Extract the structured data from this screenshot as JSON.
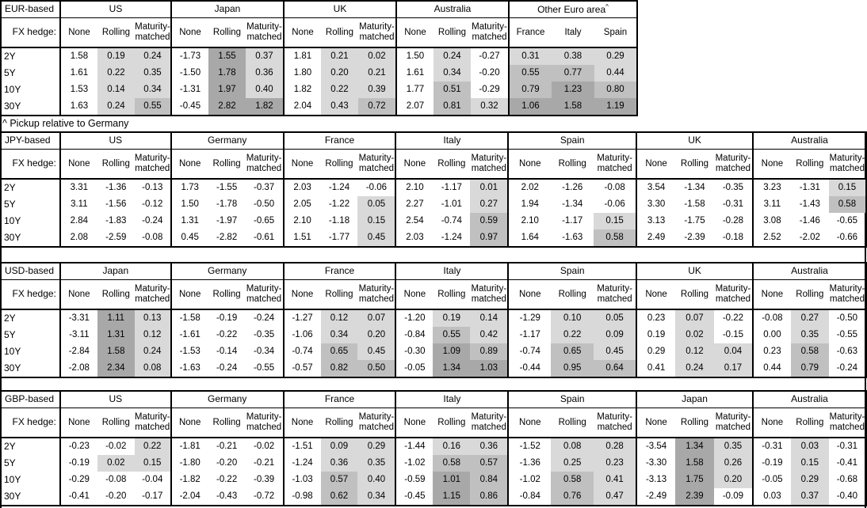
{
  "footnote": "^ Pickup relative to Germany",
  "hedge_label": "FX hedge:",
  "tenors": [
    "2Y",
    "5Y",
    "10Y",
    "30Y"
  ],
  "hedge_columns": [
    "None",
    "Rolling",
    "Maturity-matched"
  ],
  "colors": {
    "shade_light": "#d9d9d9",
    "shade_medium": "#c0c0c0",
    "shade_dark": "#a8a8a8",
    "border": "#000000",
    "background": "#ffffff"
  },
  "shading_legend": "cells shaded by value: <0 none, 0-0.5 light, 0.5-1 medium, >=1 dark; None column never shaded",
  "tables": [
    {
      "base": "EUR-based",
      "groups": [
        {
          "name": "US",
          "cols": [
            "None",
            "Rolling",
            "Maturity-matched"
          ],
          "shade_all": false,
          "rows": [
            [
              "1.58",
              "0.19",
              "0.24"
            ],
            [
              "1.61",
              "0.22",
              "0.35"
            ],
            [
              "1.53",
              "0.14",
              "0.34"
            ],
            [
              "1.63",
              "0.24",
              "0.55"
            ]
          ]
        },
        {
          "name": "Japan",
          "cols": [
            "None",
            "Rolling",
            "Maturity-matched"
          ],
          "shade_all": false,
          "rows": [
            [
              "-1.73",
              "1.55",
              "0.37"
            ],
            [
              "-1.50",
              "1.78",
              "0.36"
            ],
            [
              "-1.31",
              "1.97",
              "0.40"
            ],
            [
              "-0.45",
              "2.82",
              "1.82"
            ]
          ]
        },
        {
          "name": "UK",
          "cols": [
            "None",
            "Rolling",
            "Maturity-matched"
          ],
          "shade_all": false,
          "rows": [
            [
              "1.81",
              "0.21",
              "0.02"
            ],
            [
              "1.80",
              "0.20",
              "0.21"
            ],
            [
              "1.82",
              "0.22",
              "0.39"
            ],
            [
              "2.04",
              "0.43",
              "0.72"
            ]
          ]
        },
        {
          "name": "Australia",
          "cols": [
            "None",
            "Rolling",
            "Maturity-matched"
          ],
          "shade_all": false,
          "rows": [
            [
              "1.50",
              "0.24",
              "-0.27"
            ],
            [
              "1.61",
              "0.34",
              "-0.20"
            ],
            [
              "1.77",
              "0.51",
              "-0.29"
            ],
            [
              "2.07",
              "0.81",
              "0.32"
            ]
          ]
        },
        {
          "name": "Other Euro area",
          "footnote_marker": "^",
          "cols": [
            "France",
            "Italy",
            "Spain"
          ],
          "shade_all": true,
          "rows": [
            [
              "0.31",
              "0.38",
              "0.29"
            ],
            [
              "0.55",
              "0.77",
              "0.44"
            ],
            [
              "0.79",
              "1.23",
              "0.80"
            ],
            [
              "1.06",
              "1.58",
              "1.19"
            ]
          ]
        }
      ]
    },
    {
      "base": "JPY-based",
      "groups": [
        {
          "name": "US",
          "cols": [
            "None",
            "Rolling",
            "Maturity-matched"
          ],
          "shade_all": false,
          "rows": [
            [
              "3.31",
              "-1.36",
              "-0.13"
            ],
            [
              "3.11",
              "-1.56",
              "-0.12"
            ],
            [
              "2.84",
              "-1.83",
              "-0.24"
            ],
            [
              "2.08",
              "-2.59",
              "-0.08"
            ]
          ]
        },
        {
          "name": "Germany",
          "cols": [
            "None",
            "Rolling",
            "Maturity-matched"
          ],
          "shade_all": false,
          "rows": [
            [
              "1.73",
              "-1.55",
              "-0.37"
            ],
            [
              "1.50",
              "-1.78",
              "-0.50"
            ],
            [
              "1.31",
              "-1.97",
              "-0.65"
            ],
            [
              "0.45",
              "-2.82",
              "-0.61"
            ]
          ]
        },
        {
          "name": "France",
          "cols": [
            "None",
            "Rolling",
            "Maturity-matched"
          ],
          "shade_all": false,
          "rows": [
            [
              "2.03",
              "-1.24",
              "-0.06"
            ],
            [
              "2.05",
              "-1.22",
              "0.05"
            ],
            [
              "2.10",
              "-1.18",
              "0.15"
            ],
            [
              "1.51",
              "-1.77",
              "0.45"
            ]
          ]
        },
        {
          "name": "Italy",
          "cols": [
            "None",
            "Rolling",
            "Maturity-matched"
          ],
          "shade_all": false,
          "rows": [
            [
              "2.10",
              "-1.17",
              "0.01"
            ],
            [
              "2.27",
              "-1.01",
              "0.27"
            ],
            [
              "2.54",
              "-0.74",
              "0.59"
            ],
            [
              "2.03",
              "-1.24",
              "0.97"
            ]
          ]
        },
        {
          "name": "Spain",
          "cols": [
            "None",
            "Rolling",
            "Maturity-matched"
          ],
          "shade_all": false,
          "rows": [
            [
              "2.02",
              "-1.26",
              "-0.08"
            ],
            [
              "1.94",
              "-1.34",
              "-0.06"
            ],
            [
              "2.10",
              "-1.17",
              "0.15"
            ],
            [
              "1.64",
              "-1.63",
              "0.58"
            ]
          ]
        },
        {
          "name": "UK",
          "cols": [
            "None",
            "Rolling",
            "Maturity-matched"
          ],
          "shade_all": false,
          "rows": [
            [
              "3.54",
              "-1.34",
              "-0.35"
            ],
            [
              "3.30",
              "-1.58",
              "-0.31"
            ],
            [
              "3.13",
              "-1.75",
              "-0.28"
            ],
            [
              "2.49",
              "-2.39",
              "-0.18"
            ]
          ]
        },
        {
          "name": "Australia",
          "cols": [
            "None",
            "Rolling",
            "Maturity-matched"
          ],
          "shade_all": false,
          "rows": [
            [
              "3.23",
              "-1.31",
              "0.15"
            ],
            [
              "3.11",
              "-1.43",
              "0.58"
            ],
            [
              "3.08",
              "-1.46",
              "-0.65"
            ],
            [
              "2.52",
              "-2.02",
              "-0.66"
            ]
          ]
        }
      ]
    },
    {
      "base": "USD-based",
      "groups": [
        {
          "name": "Japan",
          "cols": [
            "None",
            "Rolling",
            "Maturity-matched"
          ],
          "shade_all": false,
          "rows": [
            [
              "-3.31",
              "1.11",
              "0.13"
            ],
            [
              "-3.11",
              "1.31",
              "0.12"
            ],
            [
              "-2.84",
              "1.58",
              "0.24"
            ],
            [
              "-2.08",
              "2.34",
              "0.08"
            ]
          ]
        },
        {
          "name": "Germany",
          "cols": [
            "None",
            "Rolling",
            "Maturity-matched"
          ],
          "shade_all": false,
          "rows": [
            [
              "-1.58",
              "-0.19",
              "-0.24"
            ],
            [
              "-1.61",
              "-0.22",
              "-0.35"
            ],
            [
              "-1.53",
              "-0.14",
              "-0.34"
            ],
            [
              "-1.63",
              "-0.24",
              "-0.55"
            ]
          ]
        },
        {
          "name": "France",
          "cols": [
            "None",
            "Rolling",
            "Maturity-matched"
          ],
          "shade_all": false,
          "rows": [
            [
              "-1.27",
              "0.12",
              "0.07"
            ],
            [
              "-1.06",
              "0.34",
              "0.20"
            ],
            [
              "-0.74",
              "0.65",
              "0.45"
            ],
            [
              "-0.57",
              "0.82",
              "0.50"
            ]
          ]
        },
        {
          "name": "Italy",
          "cols": [
            "None",
            "Rolling",
            "Maturity-matched"
          ],
          "shade_all": false,
          "rows": [
            [
              "-1.20",
              "0.19",
              "0.14"
            ],
            [
              "-0.84",
              "0.55",
              "0.42"
            ],
            [
              "-0.30",
              "1.09",
              "0.89"
            ],
            [
              "-0.05",
              "1.34",
              "1.03"
            ]
          ]
        },
        {
          "name": "Spain",
          "cols": [
            "None",
            "Rolling",
            "Maturity-matched"
          ],
          "shade_all": false,
          "rows": [
            [
              "-1.29",
              "0.10",
              "0.05"
            ],
            [
              "-1.17",
              "0.22",
              "0.09"
            ],
            [
              "-0.74",
              "0.65",
              "0.45"
            ],
            [
              "-0.44",
              "0.95",
              "0.64"
            ]
          ]
        },
        {
          "name": "UK",
          "cols": [
            "None",
            "Rolling",
            "Maturity-matched"
          ],
          "shade_all": false,
          "rows": [
            [
              "0.23",
              "0.07",
              "-0.22"
            ],
            [
              "0.19",
              "0.02",
              "-0.15"
            ],
            [
              "0.29",
              "0.12",
              "0.04"
            ],
            [
              "0.41",
              "0.24",
              "0.17"
            ]
          ]
        },
        {
          "name": "Australia",
          "cols": [
            "None",
            "Rolling",
            "Maturity-matched"
          ],
          "shade_all": false,
          "rows": [
            [
              "-0.08",
              "0.27",
              "-0.50"
            ],
            [
              "0.00",
              "0.35",
              "-0.55"
            ],
            [
              "0.23",
              "0.58",
              "-0.63"
            ],
            [
              "0.44",
              "0.79",
              "-0.24"
            ]
          ]
        }
      ]
    },
    {
      "base": "GBP-based",
      "groups": [
        {
          "name": "US",
          "cols": [
            "None",
            "Rolling",
            "Maturity-matched"
          ],
          "shade_all": false,
          "rows": [
            [
              "-0.23",
              "-0.02",
              "0.22"
            ],
            [
              "-0.19",
              "0.02",
              "0.15"
            ],
            [
              "-0.29",
              "-0.08",
              "-0.04"
            ],
            [
              "-0.41",
              "-0.20",
              "-0.17"
            ]
          ]
        },
        {
          "name": "Germany",
          "cols": [
            "None",
            "Rolling",
            "Maturity-matched"
          ],
          "shade_all": false,
          "rows": [
            [
              "-1.81",
              "-0.21",
              "-0.02"
            ],
            [
              "-1.80",
              "-0.20",
              "-0.21"
            ],
            [
              "-1.82",
              "-0.22",
              "-0.39"
            ],
            [
              "-2.04",
              "-0.43",
              "-0.72"
            ]
          ]
        },
        {
          "name": "France",
          "cols": [
            "None",
            "Rolling",
            "Maturity-matched"
          ],
          "shade_all": false,
          "rows": [
            [
              "-1.51",
              "0.09",
              "0.29"
            ],
            [
              "-1.24",
              "0.36",
              "0.35"
            ],
            [
              "-1.03",
              "0.57",
              "0.40"
            ],
            [
              "-0.98",
              "0.62",
              "0.34"
            ]
          ]
        },
        {
          "name": "Italy",
          "cols": [
            "None",
            "Rolling",
            "Maturity-matched"
          ],
          "shade_all": false,
          "rows": [
            [
              "-1.44",
              "0.16",
              "0.36"
            ],
            [
              "-1.02",
              "0.58",
              "0.57"
            ],
            [
              "-0.59",
              "1.01",
              "0.84"
            ],
            [
              "-0.45",
              "1.15",
              "0.86"
            ]
          ]
        },
        {
          "name": "Spain",
          "cols": [
            "None",
            "Rolling",
            "Maturity-matched"
          ],
          "shade_all": false,
          "rows": [
            [
              "-1.52",
              "0.08",
              "0.28"
            ],
            [
              "-1.36",
              "0.25",
              "0.23"
            ],
            [
              "-1.02",
              "0.58",
              "0.41"
            ],
            [
              "-0.84",
              "0.76",
              "0.47"
            ]
          ]
        },
        {
          "name": "Japan",
          "cols": [
            "None",
            "Rolling",
            "Maturity-matched"
          ],
          "shade_all": false,
          "rows": [
            [
              "-3.54",
              "1.34",
              "0.35"
            ],
            [
              "-3.30",
              "1.58",
              "0.26"
            ],
            [
              "-3.13",
              "1.75",
              "0.20"
            ],
            [
              "-2.49",
              "2.39",
              "-0.09"
            ]
          ]
        },
        {
          "name": "Australia",
          "cols": [
            "None",
            "Rolling",
            "Maturity-matched"
          ],
          "shade_all": false,
          "rows": [
            [
              "-0.31",
              "0.03",
              "-0.31"
            ],
            [
              "-0.19",
              "0.15",
              "-0.41"
            ],
            [
              "-0.05",
              "0.29",
              "-0.68"
            ],
            [
              "0.03",
              "0.37",
              "-0.40"
            ]
          ]
        }
      ]
    }
  ]
}
